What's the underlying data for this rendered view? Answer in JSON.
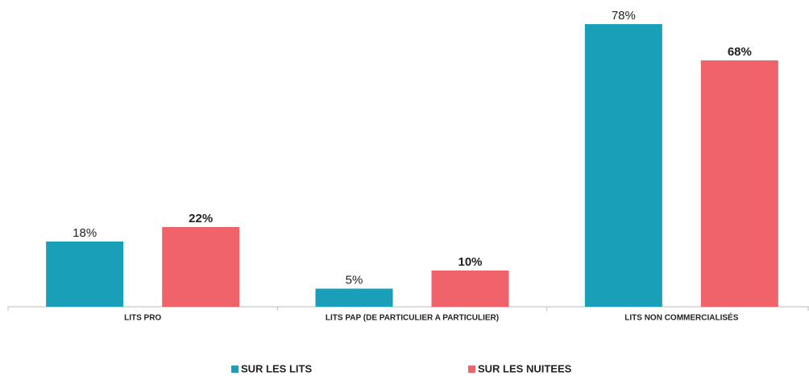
{
  "chart_data": {
    "type": "bar",
    "categories": [
      "LITS PRO",
      "LITS PAP (DE PARTICULIER A PARTICULIER)",
      "LITS NON COMMERCIALISÉS"
    ],
    "series": [
      {
        "name": "SUR LES LITS",
        "color": "#1a9fb8",
        "values": [
          18,
          5,
          78
        ],
        "value_labels": [
          "18%",
          "5%",
          "78%"
        ]
      },
      {
        "name": "SUR LES NUITEES",
        "color": "#f0636a",
        "values": [
          22,
          10,
          68
        ],
        "value_labels": [
          "22%",
          "10%",
          "68%"
        ]
      }
    ],
    "ylim": [
      0,
      80
    ]
  }
}
